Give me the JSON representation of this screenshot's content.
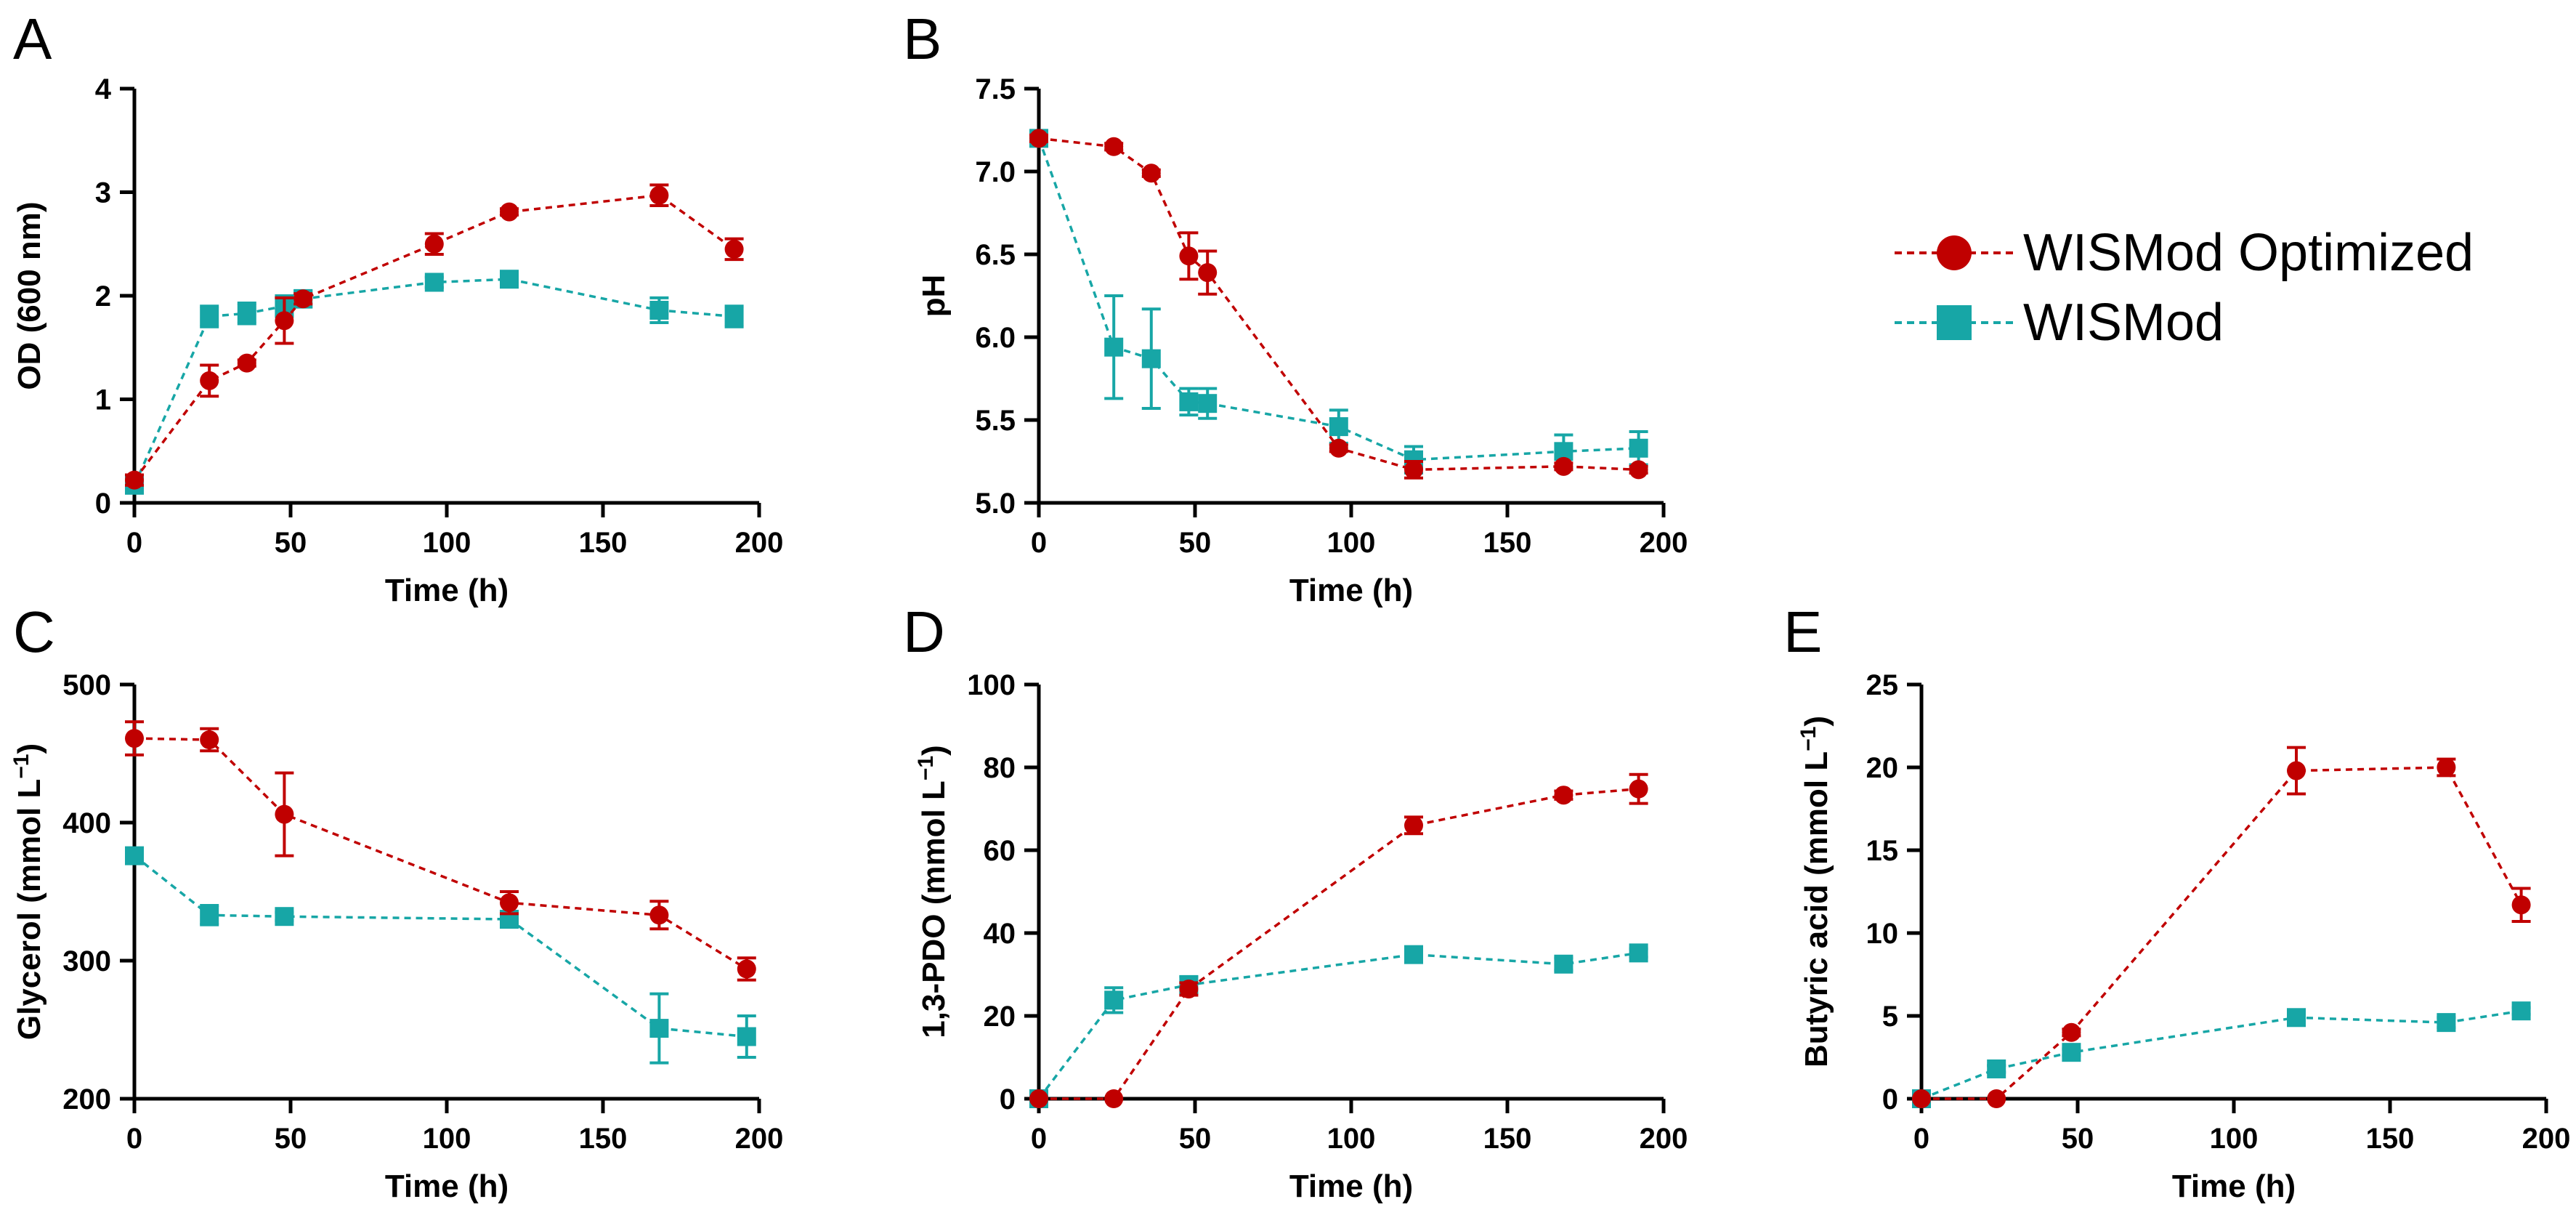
{
  "colors": {
    "optimized": "#C00000",
    "wismod": "#17A6A6",
    "axis": "#000000"
  },
  "legend": {
    "optimized_label": "WISMod Optimized",
    "wismod_label": "WISMod"
  },
  "panel_labels": [
    "A",
    "B",
    "C",
    "D",
    "E"
  ],
  "chart_data": [
    {
      "id": "A",
      "type": "line",
      "xlabel": "Time (h)",
      "ylabel": "OD (600 nm)",
      "xlim": [
        0,
        200
      ],
      "ylim": [
        0,
        4
      ],
      "xticks": [
        0,
        50,
        100,
        150,
        200
      ],
      "yticks": [
        0,
        1,
        2,
        3,
        4
      ],
      "xtick_labels": [
        "0",
        "50",
        "100",
        "150",
        "200"
      ],
      "ytick_labels": [
        "0",
        "1",
        "2",
        "3",
        "4"
      ],
      "series": [
        {
          "name": "WISMod Optimized",
          "marker": "circle",
          "x": [
            0,
            24,
            36,
            48,
            54,
            96,
            120,
            168,
            192
          ],
          "y": [
            0.22,
            1.18,
            1.35,
            1.76,
            1.97,
            2.5,
            2.81,
            2.97,
            2.45
          ],
          "err": [
            0.05,
            0.15,
            0.03,
            0.22,
            0.05,
            0.1,
            0.03,
            0.1,
            0.1
          ]
        },
        {
          "name": "WISMod",
          "marker": "square",
          "x": [
            0,
            24,
            36,
            48,
            54,
            96,
            120,
            168,
            192
          ],
          "y": [
            0.17,
            1.8,
            1.83,
            1.9,
            1.97,
            2.13,
            2.16,
            1.86,
            1.8
          ],
          "err": [
            0.03,
            0.1,
            0.1,
            0.1,
            0.08,
            0.05,
            0.05,
            0.12,
            0.1
          ]
        }
      ]
    },
    {
      "id": "B",
      "type": "line",
      "xlabel": "Time (h)",
      "ylabel": "pH",
      "xlim": [
        0,
        200
      ],
      "ylim": [
        5.0,
        7.5
      ],
      "xticks": [
        0,
        50,
        100,
        150,
        200
      ],
      "yticks": [
        5.0,
        5.5,
        6.0,
        6.5,
        7.0,
        7.5
      ],
      "xtick_labels": [
        "0",
        "50",
        "100",
        "150",
        "200"
      ],
      "ytick_labels": [
        "5.0",
        "5.5",
        "6.0",
        "6.5",
        "7.0",
        "7.5"
      ],
      "series": [
        {
          "name": "WISMod Optimized",
          "marker": "circle",
          "x": [
            0,
            24,
            36,
            48,
            54,
            96,
            120,
            168,
            192
          ],
          "y": [
            7.2,
            7.15,
            6.99,
            6.49,
            6.39,
            5.33,
            5.2,
            5.22,
            5.2
          ],
          "err": [
            0.02,
            0.02,
            0.02,
            0.14,
            0.13,
            0.02,
            0.05,
            0.02,
            0.02
          ]
        },
        {
          "name": "WISMod",
          "marker": "square",
          "x": [
            0,
            24,
            36,
            48,
            54,
            96,
            120,
            168,
            192
          ],
          "y": [
            7.2,
            5.94,
            5.87,
            5.61,
            5.6,
            5.46,
            5.26,
            5.31,
            5.33
          ],
          "err": [
            0.02,
            0.31,
            0.3,
            0.08,
            0.09,
            0.1,
            0.08,
            0.1,
            0.1
          ]
        }
      ]
    },
    {
      "id": "C",
      "type": "line",
      "xlabel": "Time (h)",
      "ylabel": "Glycerol (mmol L⁻¹)",
      "xlim": [
        0,
        200
      ],
      "ylim": [
        200,
        500
      ],
      "xticks": [
        0,
        50,
        100,
        150,
        200
      ],
      "yticks": [
        200,
        300,
        400,
        500
      ],
      "xtick_labels": [
        "0",
        "50",
        "100",
        "150",
        "200"
      ],
      "ytick_labels": [
        "200",
        "300",
        "400",
        "500"
      ],
      "series": [
        {
          "name": "WISMod Optimized",
          "marker": "circle",
          "x": [
            0,
            24,
            48,
            120,
            168,
            196
          ],
          "y": [
            461,
            460,
            406,
            342,
            333,
            294
          ],
          "err": [
            12,
            8,
            30,
            8,
            10,
            8
          ]
        },
        {
          "name": "WISMod",
          "marker": "square",
          "x": [
            0,
            24,
            48,
            120,
            168,
            196
          ],
          "y": [
            376,
            333,
            332,
            330,
            251,
            245
          ],
          "err": [
            3,
            7,
            3,
            3,
            25,
            15
          ]
        }
      ]
    },
    {
      "id": "D",
      "type": "line",
      "xlabel": "Time (h)",
      "ylabel": "1,3-PDO (mmol L⁻¹)",
      "xlim": [
        0,
        200
      ],
      "ylim": [
        0,
        100
      ],
      "xticks": [
        0,
        50,
        100,
        150,
        200
      ],
      "yticks": [
        0,
        20,
        40,
        60,
        80,
        100
      ],
      "xtick_labels": [
        "0",
        "50",
        "100",
        "150",
        "200"
      ],
      "ytick_labels": [
        "0",
        "20",
        "40",
        "60",
        "80",
        "100"
      ],
      "series": [
        {
          "name": "WISMod Optimized",
          "marker": "circle",
          "x": [
            0,
            24,
            48,
            120,
            168,
            192
          ],
          "y": [
            0,
            0,
            26.5,
            66,
            73.3,
            74.8
          ],
          "err": [
            0,
            0,
            1.5,
            2,
            1,
            3.5
          ]
        },
        {
          "name": "WISMod",
          "marker": "square",
          "x": [
            0,
            24,
            48,
            120,
            168,
            192
          ],
          "y": [
            0,
            23.8,
            27.5,
            34.8,
            32.5,
            35.2
          ],
          "err": [
            0,
            3,
            2,
            1.5,
            1.5,
            1
          ]
        }
      ]
    },
    {
      "id": "E",
      "type": "line",
      "xlabel": "Time (h)",
      "ylabel": "Butyric acid (mmol L⁻¹)",
      "xlim": [
        0,
        200
      ],
      "ylim": [
        0,
        25
      ],
      "xticks": [
        0,
        50,
        100,
        150,
        200
      ],
      "yticks": [
        0,
        5,
        10,
        15,
        20,
        25
      ],
      "xtick_labels": [
        "0",
        "50",
        "100",
        "150",
        "200"
      ],
      "ytick_labels": [
        "0",
        "5",
        "10",
        "15",
        "20",
        "25"
      ],
      "series": [
        {
          "name": "WISMod Optimized",
          "marker": "circle",
          "x": [
            0,
            24,
            48,
            120,
            168,
            192
          ],
          "y": [
            0,
            0,
            4.0,
            19.8,
            20.0,
            11.7
          ],
          "err": [
            0,
            0,
            0.2,
            1.4,
            0.5,
            1.0
          ]
        },
        {
          "name": "WISMod",
          "marker": "square",
          "x": [
            0,
            24,
            48,
            120,
            168,
            192
          ],
          "y": [
            0,
            1.8,
            2.8,
            4.9,
            4.6,
            5.3
          ],
          "err": [
            0,
            0.2,
            0.2,
            0.2,
            0.3,
            0.2
          ]
        }
      ]
    }
  ]
}
